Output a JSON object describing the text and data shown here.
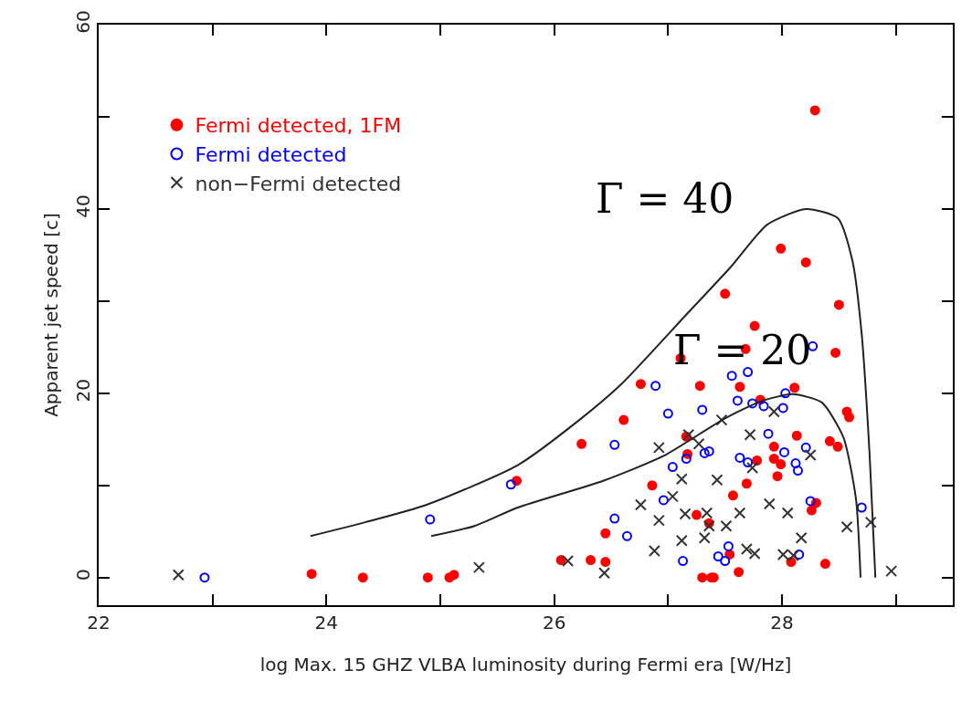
{
  "chart_data": {
    "type": "scatter",
    "xlabel": "log Max. 15 GHZ VLBA luminosity during Fermi era [W/Hz]",
    "ylabel": "Apparent jet speed [c]",
    "xlim": [
      22,
      29.5
    ],
    "ylim": [
      -3,
      60
    ],
    "xticks": [
      22,
      {
        "value": 23,
        "label": null
      },
      24,
      {
        "value": 25,
        "label": null
      },
      26,
      {
        "value": 27,
        "label": null
      },
      28,
      {
        "value": 29,
        "label": null
      }
    ],
    "yticks": [
      0,
      {
        "value": 10,
        "label": null
      },
      20,
      {
        "value": 30,
        "label": null
      },
      40,
      {
        "value": 50,
        "label": null
      },
      60
    ],
    "legend": "top left",
    "annotations": [
      "Γ = 40",
      "Γ = 20"
    ],
    "series": [
      {
        "name": "Fermi detected, 1FM",
        "color": "#ff0000",
        "marker": "circle",
        "x": [
          23.87,
          24.32,
          24.89,
          25.08,
          25.12,
          25.67,
          26.06,
          26.24,
          26.32,
          26.45,
          26.45,
          26.61,
          26.76,
          26.86,
          27.11,
          27.16,
          27.17,
          27.25,
          27.28,
          27.3,
          27.36,
          27.38,
          27.4,
          27.5,
          27.54,
          27.57,
          27.62,
          27.63,
          27.68,
          27.69,
          27.76,
          27.78,
          27.81,
          27.93,
          27.93,
          27.96,
          27.99,
          27.99,
          28.08,
          28.11,
          28.13,
          28.21,
          28.26,
          28.29,
          28.3,
          28.38,
          28.42,
          28.47,
          28.49,
          28.5,
          28.57,
          28.59
        ],
        "values": [
          0.4,
          0,
          0,
          0,
          0.3,
          10.5,
          1.9,
          14.5,
          1.9,
          1.7,
          4.8,
          17.1,
          21.0,
          10.0,
          23.8,
          15.3,
          13.4,
          6.8,
          20.8,
          0,
          5.9,
          0,
          0,
          30.8,
          2.5,
          8.9,
          0.6,
          20.7,
          24.8,
          10.2,
          27.3,
          12.7,
          19.3,
          14.2,
          12.9,
          11.0,
          12.3,
          35.7,
          1.7,
          20.6,
          15.4,
          34.2,
          7.3,
          50.7,
          8.1,
          1.5,
          14.8,
          24.4,
          14.2,
          29.6,
          18.0,
          17.4
        ]
      },
      {
        "name": "Fermi detected",
        "color": "#0000ff",
        "marker": "circle-open",
        "x": [
          22.93,
          24.91,
          25.62,
          26.53,
          26.53,
          26.64,
          26.89,
          26.96,
          27.0,
          27.04,
          27.13,
          27.16,
          27.3,
          27.32,
          27.36,
          27.44,
          27.5,
          27.53,
          27.56,
          27.61,
          27.63,
          27.7,
          27.7,
          27.74,
          27.84,
          27.88,
          28.01,
          28.02,
          28.03,
          28.12,
          28.14,
          28.15,
          28.21,
          28.25,
          28.27,
          28.7
        ],
        "values": [
          0,
          6.3,
          10.1,
          14.4,
          6.4,
          4.5,
          20.8,
          8.4,
          17.8,
          12.0,
          1.8,
          12.9,
          18.2,
          13.5,
          13.7,
          2.3,
          1.8,
          3.4,
          21.9,
          19.2,
          13.0,
          22.3,
          12.5,
          18.9,
          18.6,
          15.6,
          18.4,
          13.6,
          20.0,
          12.4,
          11.6,
          2.5,
          14.1,
          8.3,
          25.1,
          7.6
        ]
      },
      {
        "name": "non−Fermi detected",
        "color": "#333333",
        "marker": "cross",
        "x": [
          22.7,
          25.34,
          26.12,
          26.44,
          26.76,
          26.88,
          26.92,
          26.92,
          27.04,
          27.12,
          27.12,
          27.15,
          27.18,
          27.27,
          27.32,
          27.34,
          27.36,
          27.43,
          27.47,
          27.51,
          27.63,
          27.69,
          27.72,
          27.74,
          27.76,
          27.89,
          27.93,
          28.01,
          28.05,
          28.1,
          28.17,
          28.25,
          28.57,
          28.78,
          28.96
        ],
        "values": [
          0.3,
          1.1,
          1.8,
          0.5,
          7.9,
          2.9,
          14.1,
          6.2,
          8.8,
          10.7,
          4.0,
          6.9,
          15.5,
          14.5,
          4.3,
          7.0,
          5.6,
          10.6,
          17.1,
          5.6,
          7.0,
          3.1,
          15.5,
          11.9,
          2.6,
          8.0,
          18.0,
          2.5,
          7.0,
          2.4,
          4.3,
          13.3,
          5.5,
          6.0,
          0.7
        ]
      },
      {
        "type": "line",
        "color": "#222222",
        "line_style": "solid",
        "x": [
          23.86,
          24.34,
          24.88,
          25.68,
          26.21,
          26.59,
          27.15,
          27.55,
          27.87,
          28.21,
          28.49,
          28.62,
          28.7,
          28.77,
          28.82
        ],
        "values": [
          4.5,
          6.0,
          7.9,
          12.2,
          17.0,
          21.0,
          28.4,
          33.7,
          38.3,
          40.0,
          39.0,
          34.3,
          26.4,
          13.2,
          0
        ]
      },
      {
        "type": "line",
        "color": "#222222",
        "line_style": "solid",
        "x": [
          24.92,
          25.3,
          25.68,
          26.43,
          26.96,
          27.49,
          27.81,
          28.09,
          28.35,
          28.54,
          28.65,
          28.69
        ],
        "values": [
          4.5,
          5.6,
          7.6,
          10.5,
          13.2,
          17.2,
          19.1,
          19.9,
          19.0,
          15.2,
          8.5,
          0
        ]
      }
    ]
  }
}
